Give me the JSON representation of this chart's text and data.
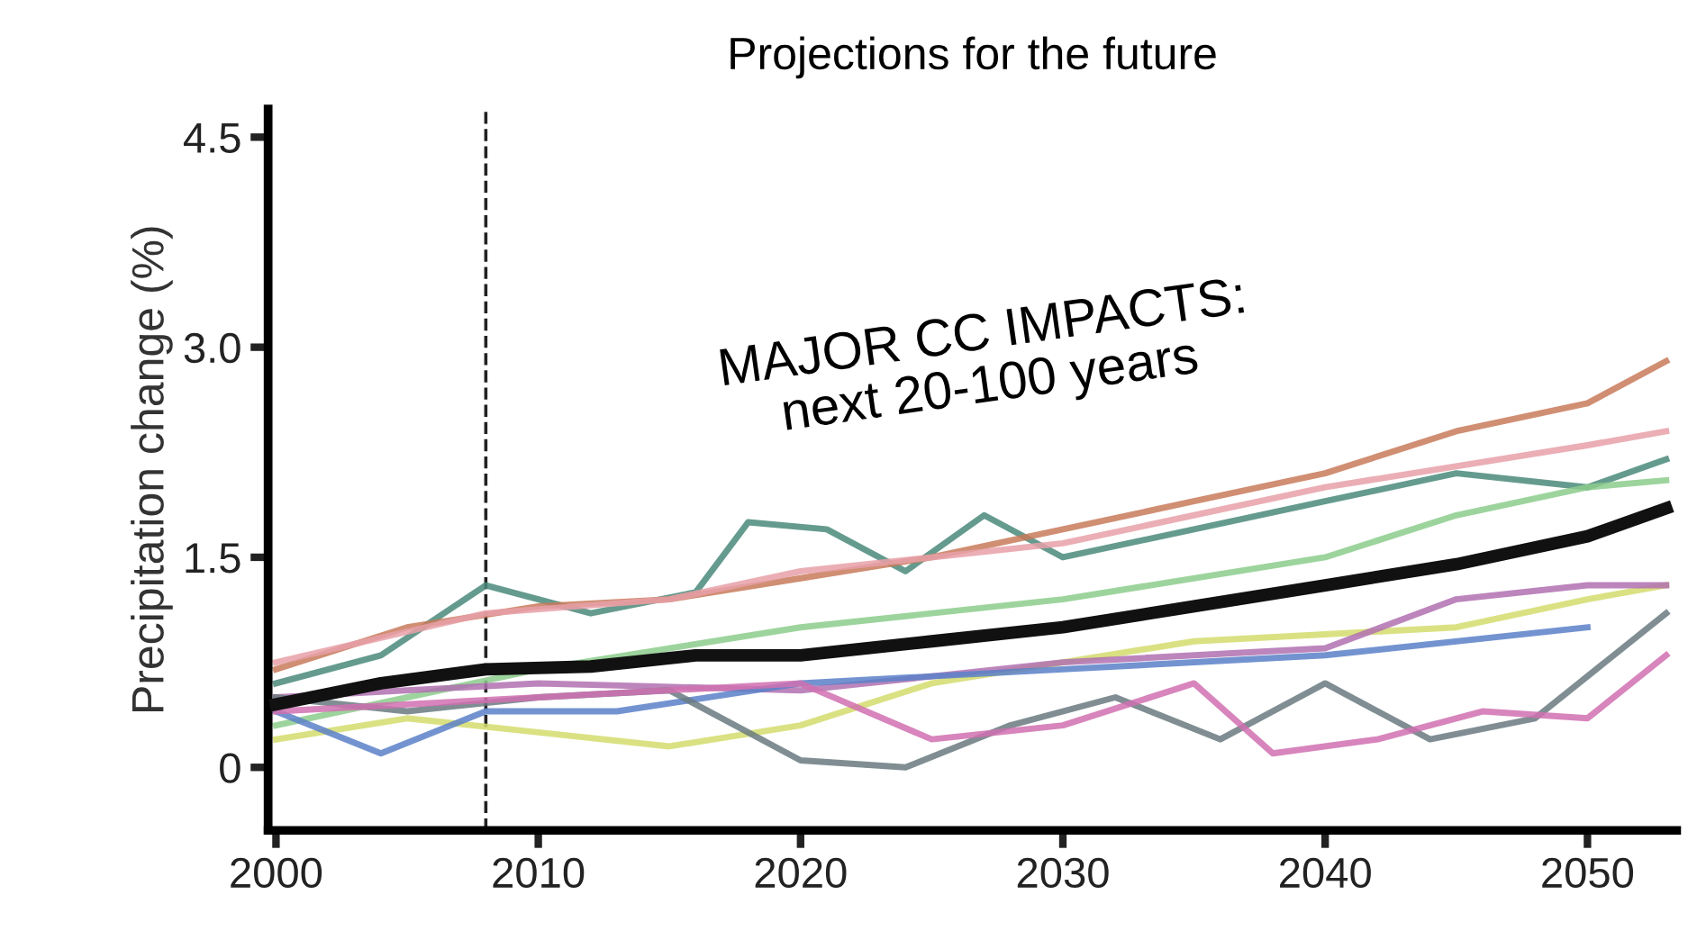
{
  "chart_data": {
    "type": "line",
    "title": "Projections for the future",
    "ylabel": "Precipitation change (%)",
    "xlim": [
      1999.7,
      2053.4
    ],
    "ylim": [
      -0.45,
      4.7
    ],
    "xticks": [
      2000,
      2010,
      2020,
      2030,
      2040,
      2050
    ],
    "yticks": [
      {
        "value": 0,
        "label": "0"
      },
      {
        "value": 1.5,
        "label": "1.5"
      },
      {
        "value": 3.0,
        "label": "3.0"
      },
      {
        "value": 4.5,
        "label": "4.5"
      }
    ],
    "grid": false,
    "legend": false,
    "line_style": "solid",
    "marker": "none",
    "annotations": [
      "MAJOR CC IMPACTS:\nnext 20-100 years"
    ],
    "ref_lines": [
      {
        "axis": "x",
        "value": 2008,
        "label": null,
        "color": "#222222",
        "line_style": "dashed"
      }
    ],
    "series": [
      {
        "color": "#4a8a7a",
        "x": [
          2000,
          2004,
          2008,
          2012,
          2016,
          2018,
          2021,
          2024,
          2027,
          2030,
          2035,
          2040,
          2045,
          2050,
          2053
        ],
        "values": [
          0.6,
          0.8,
          1.3,
          1.1,
          1.25,
          1.75,
          1.7,
          1.4,
          1.8,
          1.5,
          1.7,
          1.9,
          2.1,
          2.0,
          2.2
        ]
      },
      {
        "color": "#c87a5a",
        "x": [
          2000,
          2005,
          2010,
          2015,
          2020,
          2025,
          2030,
          2035,
          2040,
          2045,
          2050,
          2053
        ],
        "values": [
          0.7,
          1.0,
          1.15,
          1.2,
          1.35,
          1.5,
          1.7,
          1.9,
          2.1,
          2.4,
          2.6,
          2.9
        ]
      },
      {
        "color": "#e8a0a8",
        "x": [
          2000,
          2008,
          2015,
          2020,
          2030,
          2040,
          2050,
          2053
        ],
        "values": [
          0.75,
          1.1,
          1.2,
          1.4,
          1.6,
          2.0,
          2.3,
          2.4
        ]
      },
      {
        "color": "#8ccc8c",
        "x": [
          2000,
          2010,
          2020,
          2030,
          2040,
          2045,
          2050,
          2053
        ],
        "values": [
          0.3,
          0.7,
          1.0,
          1.2,
          1.5,
          1.8,
          2.0,
          2.05
        ]
      },
      {
        "color": "#d4dc6c",
        "x": [
          2000,
          2005,
          2010,
          2015,
          2020,
          2025,
          2030,
          2035,
          2040,
          2045,
          2050,
          2053
        ],
        "values": [
          0.2,
          0.35,
          0.25,
          0.15,
          0.3,
          0.6,
          0.75,
          0.9,
          0.95,
          1.0,
          1.2,
          1.3
        ]
      },
      {
        "color": "#b070b0",
        "x": [
          2000,
          2010,
          2020,
          2030,
          2040,
          2045,
          2050,
          2053
        ],
        "values": [
          0.5,
          0.6,
          0.55,
          0.75,
          0.85,
          1.2,
          1.3,
          1.3
        ]
      },
      {
        "color": "#5a80c8",
        "x": [
          2000,
          2004,
          2008,
          2013,
          2020,
          2030,
          2040,
          2050
        ],
        "values": [
          0.4,
          0.1,
          0.4,
          0.4,
          0.6,
          0.7,
          0.8,
          1.0
        ]
      },
      {
        "color": "#6a7a80",
        "x": [
          2000,
          2005,
          2010,
          2015,
          2020,
          2024,
          2028,
          2032,
          2036,
          2040,
          2044,
          2048,
          2053
        ],
        "values": [
          0.5,
          0.4,
          0.5,
          0.55,
          0.05,
          0.0,
          0.3,
          0.5,
          0.2,
          0.6,
          0.2,
          0.35,
          1.1
        ]
      },
      {
        "color": "#d070b0",
        "x": [
          2000,
          2010,
          2020,
          2025,
          2030,
          2035,
          2038,
          2042,
          2046,
          2050,
          2053
        ],
        "values": [
          0.4,
          0.5,
          0.6,
          0.2,
          0.3,
          0.6,
          0.1,
          0.2,
          0.4,
          0.35,
          0.8
        ]
      },
      {
        "color": "#111111",
        "x": [
          2000,
          2004,
          2008,
          2012,
          2016,
          2020,
          2025,
          2030,
          2035,
          2040,
          2045,
          2050,
          2053
        ],
        "values": [
          0.45,
          0.6,
          0.7,
          0.72,
          0.8,
          0.8,
          0.9,
          1.0,
          1.15,
          1.3,
          1.45,
          1.65,
          1.85
        ]
      }
    ]
  }
}
